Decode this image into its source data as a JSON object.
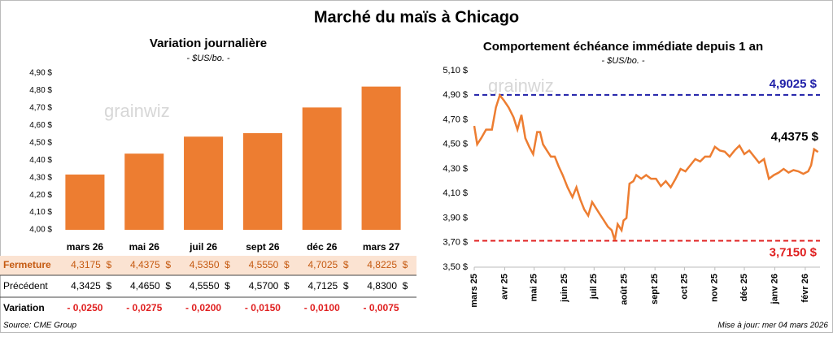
{
  "title": "Marché du maïs à Chicago",
  "source": "Source: CME Group",
  "updated": "Mise à jour: mer 04 mars 2026",
  "watermark": "grainwiz",
  "chart_data": [
    {
      "type": "bar",
      "title": "Variation journalière",
      "subtitle": "- $US/bo. -",
      "categories": [
        "mars 26",
        "mai 26",
        "juil 26",
        "sept 26",
        "déc 26",
        "mars 27"
      ],
      "values": [
        4.3175,
        4.4375,
        4.535,
        4.555,
        4.7025,
        4.8225
      ],
      "value_labels": [
        "4,3175  $",
        "4,4375  $",
        "4,5350  $",
        "4,5550  $",
        "4,7025  $",
        "4,8225  $"
      ],
      "color": "#ed7d31",
      "ylim": [
        4.0,
        4.9
      ],
      "yticks": [
        {
          "value": 4.0,
          "label": "4,00 $"
        },
        {
          "value": 4.1,
          "label": "4,10 $"
        },
        {
          "value": 4.2,
          "label": "4,20 $"
        },
        {
          "value": 4.3,
          "label": "4,30 $"
        },
        {
          "value": 4.4,
          "label": "4,40 $"
        },
        {
          "value": 4.5,
          "label": "4,50 $"
        },
        {
          "value": 4.6,
          "label": "4,60 $"
        },
        {
          "value": 4.7,
          "label": "4,70 $"
        },
        {
          "value": 4.8,
          "label": "4,80 $"
        },
        {
          "value": 4.9,
          "label": "4,90 $"
        }
      ]
    },
    {
      "type": "line",
      "title": "Comportement  échéance immédiate depuis 1 an",
      "subtitle": "- $US/bo. -",
      "x": [
        0,
        3,
        7,
        12,
        18,
        22,
        26,
        30,
        35,
        40,
        44,
        48,
        52,
        56,
        60,
        64,
        67,
        70,
        74,
        78,
        82,
        86,
        90,
        95,
        100,
        104,
        108,
        112,
        116,
        120,
        124,
        128,
        132,
        136,
        140,
        143,
        146,
        150,
        152,
        155,
        158,
        162,
        165,
        170,
        175,
        180,
        185,
        190,
        195,
        200,
        205,
        210,
        215,
        220,
        225,
        230,
        235,
        240,
        245,
        250,
        255,
        260,
        265,
        270,
        275,
        280,
        285,
        290,
        295,
        300,
        305,
        310,
        315,
        320,
        325,
        330,
        335,
        340,
        343,
        346,
        350
      ],
      "values": [
        4.65,
        4.5,
        4.55,
        4.62,
        4.62,
        4.8,
        4.9,
        4.86,
        4.8,
        4.72,
        4.62,
        4.74,
        4.55,
        4.48,
        4.42,
        4.6,
        4.6,
        4.5,
        4.45,
        4.4,
        4.4,
        4.32,
        4.25,
        4.15,
        4.07,
        4.15,
        4.05,
        3.97,
        3.92,
        4.03,
        3.98,
        3.93,
        3.88,
        3.83,
        3.8,
        3.72,
        3.85,
        3.8,
        3.88,
        3.9,
        4.18,
        4.2,
        4.25,
        4.22,
        4.25,
        4.22,
        4.22,
        4.16,
        4.2,
        4.15,
        4.22,
        4.3,
        4.28,
        4.33,
        4.38,
        4.36,
        4.4,
        4.4,
        4.48,
        4.45,
        4.44,
        4.4,
        4.45,
        4.49,
        4.42,
        4.45,
        4.4,
        4.35,
        4.38,
        4.22,
        4.25,
        4.27,
        4.3,
        4.27,
        4.29,
        4.28,
        4.26,
        4.28,
        4.33,
        4.46,
        4.4375
      ],
      "last_value_label": "4,4375 $",
      "color": "#ed7d31",
      "xlim": [
        0,
        352
      ],
      "xticks": [
        {
          "value": 0,
          "label": "mars 25"
        },
        {
          "value": 31,
          "label": "avr 25"
        },
        {
          "value": 61,
          "label": "mai 25"
        },
        {
          "value": 92,
          "label": "juin 25"
        },
        {
          "value": 122,
          "label": "juil 25"
        },
        {
          "value": 153,
          "label": "août 25"
        },
        {
          "value": 184,
          "label": "sept 25"
        },
        {
          "value": 214,
          "label": "oct 25"
        },
        {
          "value": 245,
          "label": "nov 25"
        },
        {
          "value": 275,
          "label": "déc 25"
        },
        {
          "value": 306,
          "label": "janv 26"
        },
        {
          "value": 337,
          "label": "févr 26"
        }
      ],
      "ylim": [
        3.5,
        5.1
      ],
      "yticks": [
        {
          "value": 3.5,
          "label": "3,50 $"
        },
        {
          "value": 3.7,
          "label": "3,70 $"
        },
        {
          "value": 3.9,
          "label": "3,90 $"
        },
        {
          "value": 4.1,
          "label": "4,10 $"
        },
        {
          "value": 4.3,
          "label": "4,30 $"
        },
        {
          "value": 4.5,
          "label": "4,50 $"
        },
        {
          "value": 4.7,
          "label": "4,70 $"
        },
        {
          "value": 4.9,
          "label": "4,90 $"
        },
        {
          "value": 5.1,
          "label": "5,10 $"
        }
      ],
      "reference_lines": [
        {
          "value": 4.9025,
          "label": "4,9025 $",
          "color": "#1f1fa8"
        },
        {
          "value": 3.715,
          "label": "3,7150 $",
          "color": "#e02020"
        }
      ]
    }
  ],
  "table": {
    "rows": [
      {
        "label": "Fermeture"
      },
      {
        "label": "Précédent",
        "cells": [
          "4,3425  $",
          "4,4650  $",
          "4,5550  $",
          "4,5700  $",
          "4,7125  $",
          "4,8300  $"
        ]
      },
      {
        "label": "Variation",
        "cells": [
          "- 0,0250",
          "- 0,0275",
          "- 0,0200",
          "- 0,0150",
          "- 0,0100",
          "- 0,0075"
        ]
      }
    ]
  }
}
